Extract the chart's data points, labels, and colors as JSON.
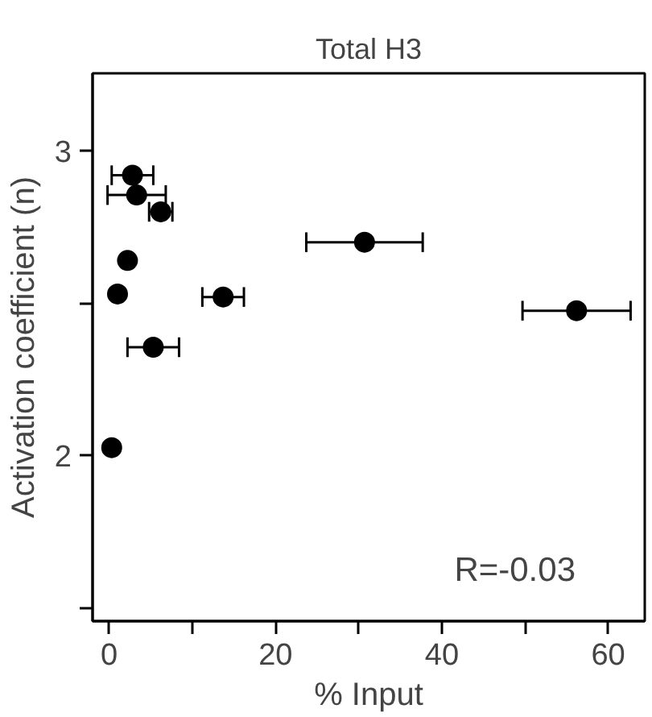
{
  "chart_data": {
    "type": "scatter",
    "title": "Total H3",
    "xlabel": "% Input",
    "ylabel": "Activation coefficient (n)",
    "x": [
      2.8,
      3.3,
      6.2,
      30.7,
      2.2,
      1.0,
      13.7,
      56.2,
      5.3,
      0.3
    ],
    "values": [
      2.92,
      2.855,
      2.8,
      2.7,
      2.64,
      2.53,
      2.52,
      2.475,
      2.355,
      2.025
    ],
    "xerrors": [
      2.5,
      3.5,
      1.4,
      7,
      null,
      null,
      2.5,
      6.5,
      3.1,
      null
    ],
    "color": "#000000",
    "marker": "circle",
    "grid": false,
    "xlim": [
      -2,
      64.4
    ],
    "ylim": [
      1.455,
      3.255
    ],
    "xticks": [
      0,
      {
        "value": 10,
        "label": null
      },
      20,
      {
        "value": 30,
        "label": null
      },
      40,
      {
        "value": 50,
        "label": null
      },
      60
    ],
    "yticks": [
      {
        "value": 1.5,
        "label": null
      },
      2,
      {
        "value": 2.5,
        "label": null
      },
      3
    ],
    "annotations": [
      "R=-0.03"
    ]
  }
}
